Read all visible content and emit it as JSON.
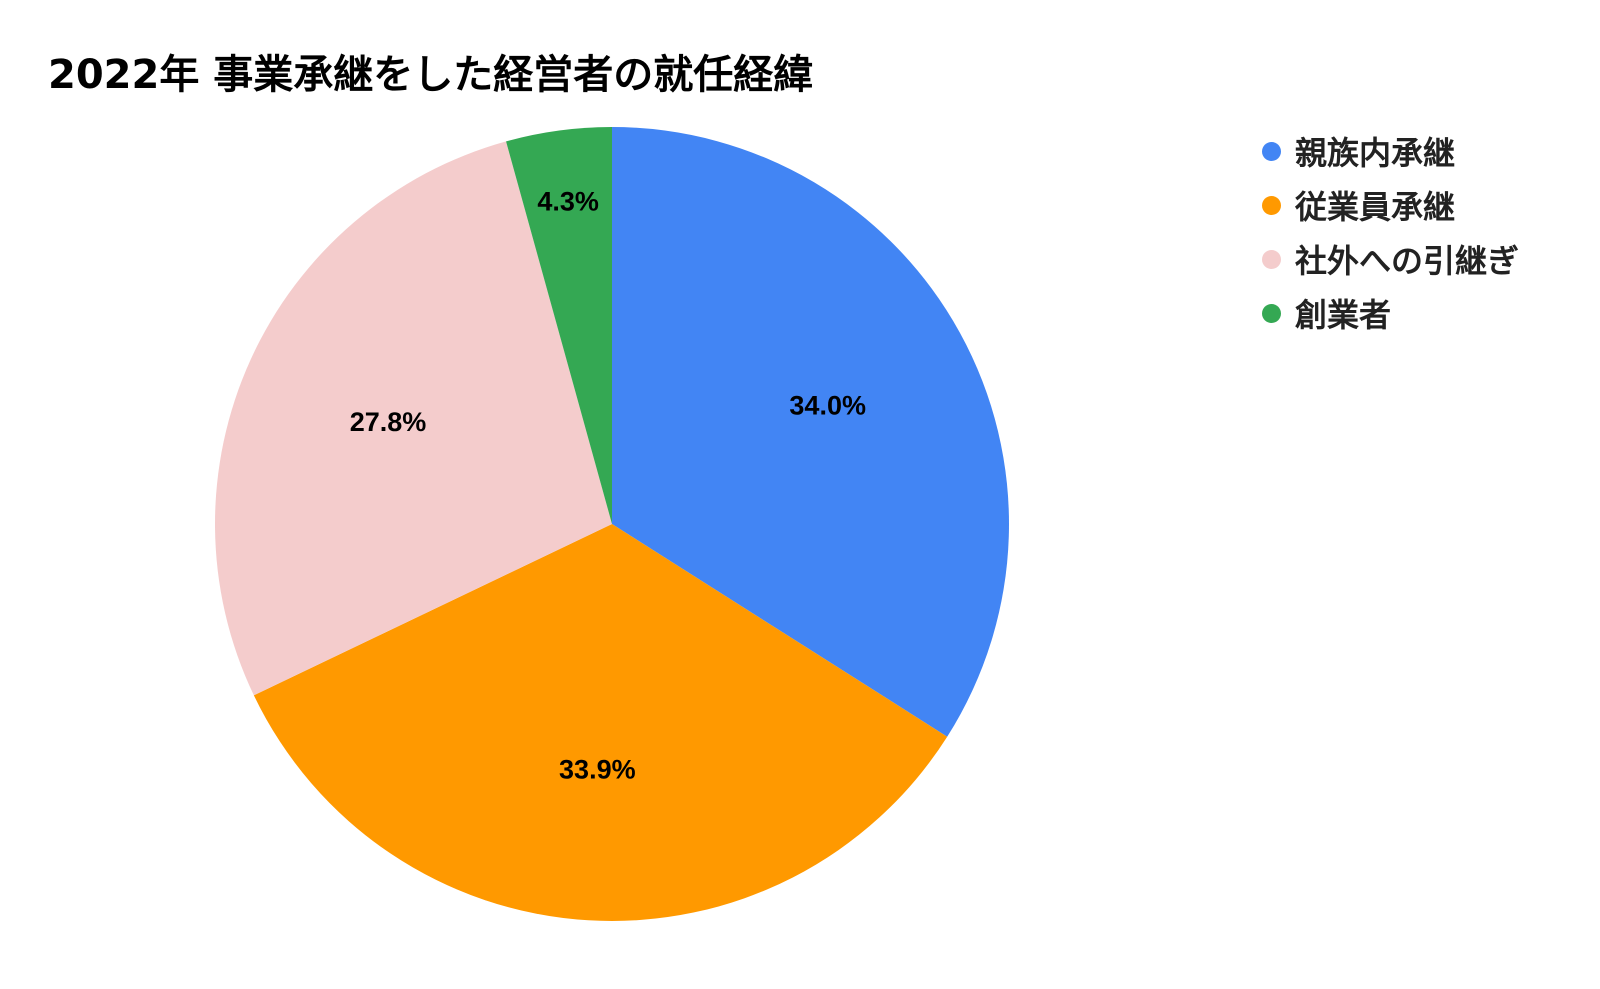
{
  "chart_data": {
    "type": "pie",
    "title": "2022年 事業承継をした経営者の就任経緯",
    "categories": [
      "親族内承継",
      "従業員承継",
      "社外への引継ぎ",
      "創業者"
    ],
    "values": [
      34.0,
      33.9,
      27.8,
      4.3
    ],
    "value_labels": [
      "34.0%",
      "33.9%",
      "27.8%",
      "4.3%"
    ],
    "colors": [
      "#4285F4",
      "#FF9900",
      "#F4CCCC",
      "#34A853"
    ],
    "start_angle_deg": 0,
    "direction": "clockwise",
    "legend_position": "right"
  }
}
